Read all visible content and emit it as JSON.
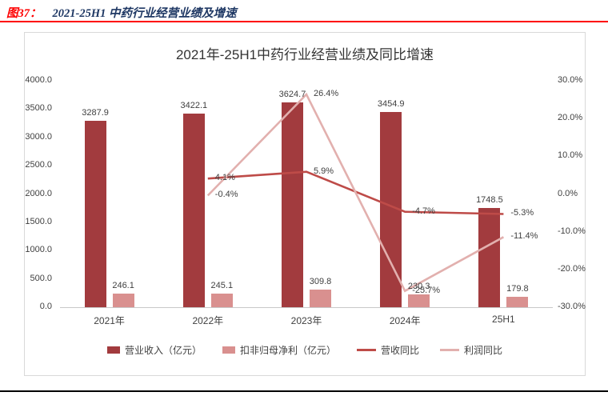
{
  "caption": {
    "label": "图37：",
    "title": "2021-25H1 中药行业经营业绩及增速"
  },
  "chart_data": {
    "type": "bar+line",
    "title": "2021年-25H1中药行业经营业绩及同比增速",
    "categories": [
      "2021年",
      "2022年",
      "2023年",
      "2024年",
      "25H1"
    ],
    "bar_series": [
      {
        "name": "营业收入（亿元）",
        "axis": "left",
        "color": "#A23B3E",
        "values": [
          3287.9,
          3422.1,
          3624.7,
          3454.9,
          1748.5
        ]
      },
      {
        "name": "扣非归母净利（亿元）",
        "axis": "left",
        "color": "#D9908F",
        "values": [
          246.1,
          245.1,
          309.8,
          230.3,
          179.8
        ]
      }
    ],
    "line_series": [
      {
        "name": "营收同比",
        "axis": "right",
        "color": "#BE4B48",
        "values": [
          null,
          4.1,
          5.9,
          -4.7,
          -5.3
        ],
        "labels": [
          "",
          "4.1%",
          "5.9%",
          "-4.7%",
          "-5.3%"
        ]
      },
      {
        "name": "利润同比",
        "axis": "right",
        "color": "#E2B0AE",
        "values": [
          null,
          -0.4,
          26.4,
          -25.7,
          -11.4
        ],
        "labels": [
          "",
          "-0.4%",
          "26.4%",
          "-25.7%",
          "-11.4%"
        ]
      }
    ],
    "left_axis": {
      "min": 0,
      "max": 4000,
      "step": 500,
      "ticks": [
        "4000.0",
        "3500.0",
        "3000.0",
        "2500.0",
        "2000.0",
        "1500.0",
        "1000.0",
        "500.0",
        "0.0"
      ]
    },
    "right_axis": {
      "min": -30,
      "max": 30,
      "step": 10,
      "ticks": [
        "30.0%",
        "20.0%",
        "10.0%",
        "0.0%",
        "-10.0%",
        "-20.0%",
        "-30.0%"
      ]
    },
    "legend_position": "bottom",
    "grid": "off"
  }
}
